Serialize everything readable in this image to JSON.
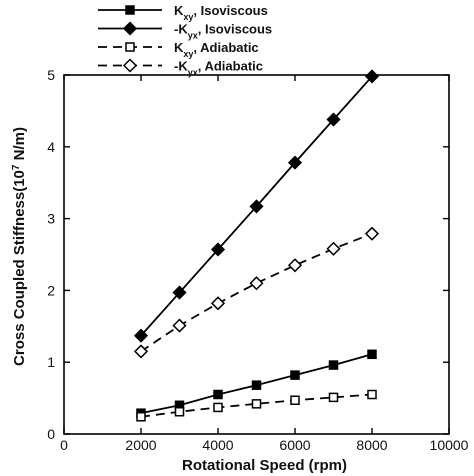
{
  "chart_data": {
    "type": "line",
    "title": "",
    "xlabel": "Rotational Speed (rpm)",
    "ylabel_parts": {
      "pre": "Cross Coupled Stiffness(10",
      "sup": "7",
      "post": " N/m)"
    },
    "xlim": [
      0,
      10000
    ],
    "ylim": [
      0,
      5
    ],
    "x_ticks": [
      0,
      2000,
      4000,
      6000,
      8000,
      10000
    ],
    "y_ticks": [
      0,
      1,
      2,
      3,
      4,
      5
    ],
    "grid": false,
    "legend_position": "top-left",
    "x": [
      2000,
      3000,
      4000,
      5000,
      6000,
      7000,
      8000
    ],
    "series": [
      {
        "name_parts": {
          "pre": "K",
          "sub": "xy",
          "post": ", Isoviscous"
        },
        "line_style": "solid",
        "marker": "square",
        "marker_fill": "filled",
        "values": [
          0.29,
          0.4,
          0.55,
          0.68,
          0.82,
          0.96,
          1.11
        ]
      },
      {
        "name_parts": {
          "pre": "-K",
          "sub": "yx",
          "post": ", Isoviscous"
        },
        "line_style": "solid",
        "marker": "diamond",
        "marker_fill": "filled",
        "values": [
          1.37,
          1.97,
          2.57,
          3.17,
          3.78,
          4.38,
          4.98
        ]
      },
      {
        "name_parts": {
          "pre": "K",
          "sub": "xy",
          "post": ", Adiabatic"
        },
        "line_style": "dashed",
        "marker": "square",
        "marker_fill": "open",
        "values": [
          0.24,
          0.31,
          0.37,
          0.42,
          0.47,
          0.51,
          0.55
        ]
      },
      {
        "name_parts": {
          "pre": "-K",
          "sub": "yx",
          "post": ", Adiabatic"
        },
        "line_style": "dashed",
        "marker": "diamond",
        "marker_fill": "open",
        "values": [
          1.15,
          1.51,
          1.82,
          2.1,
          2.35,
          2.58,
          2.79
        ]
      }
    ]
  },
  "colors": {
    "line": "#000000",
    "background": "#ffffff"
  }
}
